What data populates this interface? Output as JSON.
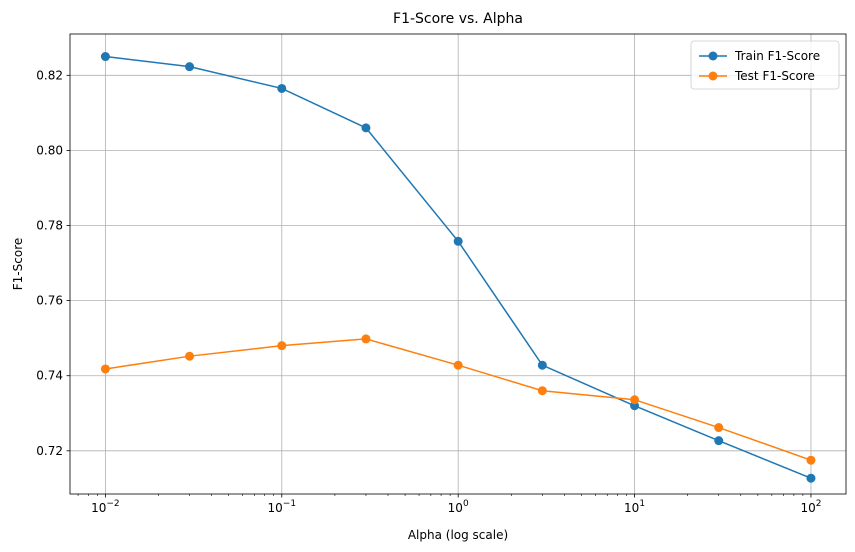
{
  "chart_data": {
    "type": "line",
    "title": "F1-Score vs. Alpha",
    "xlabel": "Alpha (log scale)",
    "ylabel": "F1-Score",
    "xscale": "log",
    "xlim": [
      0.0063,
      158
    ],
    "ylim": [
      0.7085,
      0.831
    ],
    "grid": true,
    "legend_position": "top-right",
    "x_ticks": [
      {
        "value": 0.01,
        "base": "10",
        "exp": "−2"
      },
      {
        "value": 0.1,
        "base": "10",
        "exp": "−1"
      },
      {
        "value": 1,
        "base": "10",
        "exp": "0"
      },
      {
        "value": 10,
        "base": "10",
        "exp": "1"
      },
      {
        "value": 100,
        "base": "10",
        "exp": "2"
      }
    ],
    "y_ticks": [
      "0.72",
      "0.74",
      "0.76",
      "0.78",
      "0.80",
      "0.82"
    ],
    "x": [
      0.01,
      0.03,
      0.1,
      0.3,
      1,
      3,
      10,
      30,
      100
    ],
    "series": [
      {
        "name": "Train F1-Score",
        "color": "#1f77b4",
        "values": [
          0.825,
          0.8223,
          0.8165,
          0.806,
          0.7758,
          0.7428,
          0.732,
          0.7227,
          0.7127
        ]
      },
      {
        "name": "Test F1-Score",
        "color": "#ff7f0e",
        "values": [
          0.7418,
          0.7452,
          0.748,
          0.7498,
          0.7428,
          0.736,
          0.7336,
          0.7262,
          0.7175
        ]
      }
    ]
  }
}
